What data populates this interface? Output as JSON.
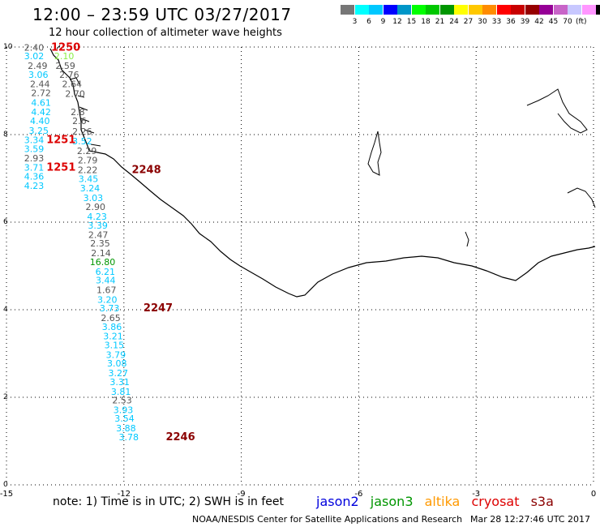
{
  "header": {
    "title": "12:00 – 23:59 UTC 03/27/2017",
    "subtitle": "12 hour collection of altimeter wave heights"
  },
  "colorbar": {
    "colors": [
      "#777777",
      "#00ffff",
      "#00c8ff",
      "#0000ff",
      "#0096c8",
      "#00ff00",
      "#00c800",
      "#009600",
      "#ffff00",
      "#ffc800",
      "#ff8c00",
      "#ff0000",
      "#c80000",
      "#960000",
      "#960096",
      "#c864c8",
      "#c8c8ff",
      "#ff96ff",
      "#000000"
    ],
    "labels": [
      "3",
      "6",
      "9",
      "12",
      "15",
      "18",
      "21",
      "24",
      "27",
      "30",
      "33",
      "36",
      "39",
      "42",
      "45",
      "70"
    ],
    "unit": "(ft)"
  },
  "map": {
    "x_ticks": [
      "-15",
      "-12",
      "-9",
      "-6",
      "-3",
      "0"
    ],
    "y_ticks": [
      "10",
      "8",
      "6",
      "4",
      "2",
      "0"
    ]
  },
  "observations": [
    {
      "v": "2.40",
      "c": "#555555",
      "lon": -14.55,
      "lat": 9.92
    },
    {
      "v": "3.02",
      "c": "#00c8ff",
      "lon": -14.55,
      "lat": 9.72
    },
    {
      "v": "2.10",
      "c": "#88ee44",
      "lon": -13.78,
      "lat": 9.72
    },
    {
      "v": "2.59",
      "c": "#555555",
      "lon": -13.75,
      "lat": 9.5
    },
    {
      "v": "2.49",
      "c": "#555555",
      "lon": -14.46,
      "lat": 9.5
    },
    {
      "v": "3.06",
      "c": "#00c8ff",
      "lon": -14.44,
      "lat": 9.3
    },
    {
      "v": "2.76",
      "c": "#555555",
      "lon": -13.65,
      "lat": 9.3
    },
    {
      "v": "2.44",
      "c": "#555555",
      "lon": -14.4,
      "lat": 9.08
    },
    {
      "v": "2.64",
      "c": "#555555",
      "lon": -13.58,
      "lat": 9.08
    },
    {
      "v": "2.72",
      "c": "#555555",
      "lon": -14.37,
      "lat": 8.88
    },
    {
      "v": "2.70",
      "c": "#555555",
      "lon": -13.5,
      "lat": 8.86
    },
    {
      "v": "4.61",
      "c": "#00c8ff",
      "lon": -14.37,
      "lat": 8.66
    },
    {
      "v": "4.42",
      "c": "#00c8ff",
      "lon": -14.37,
      "lat": 8.44
    },
    {
      "v": "2.8",
      "c": "#555555",
      "lon": -13.36,
      "lat": 8.44
    },
    {
      "v": "4.40",
      "c": "#00c8ff",
      "lon": -14.4,
      "lat": 8.24
    },
    {
      "v": "2.6",
      "c": "#555555",
      "lon": -13.32,
      "lat": 8.24
    },
    {
      "v": "3.25",
      "c": "#00c8ff",
      "lon": -14.43,
      "lat": 8.02
    },
    {
      "v": "2.26",
      "c": "#555555",
      "lon": -13.32,
      "lat": 8.0
    },
    {
      "v": "3.34",
      "c": "#00c8ff",
      "lon": -14.55,
      "lat": 7.81
    },
    {
      "v": "3.52",
      "c": "#00c8ff",
      "lon": -13.32,
      "lat": 7.78
    },
    {
      "v": "3.59",
      "c": "#00c8ff",
      "lon": -14.55,
      "lat": 7.6
    },
    {
      "v": "2.29",
      "c": "#555555",
      "lon": -13.2,
      "lat": 7.56
    },
    {
      "v": "2.93",
      "c": "#555555",
      "lon": -14.55,
      "lat": 7.39
    },
    {
      "v": "2.79",
      "c": "#555555",
      "lon": -13.18,
      "lat": 7.34
    },
    {
      "v": "3.71",
      "c": "#00c8ff",
      "lon": -14.55,
      "lat": 7.18
    },
    {
      "v": "2.22",
      "c": "#555555",
      "lon": -13.18,
      "lat": 7.12
    },
    {
      "v": "4.36",
      "c": "#00c8ff",
      "lon": -14.55,
      "lat": 6.97
    },
    {
      "v": "3.45",
      "c": "#00c8ff",
      "lon": -13.16,
      "lat": 6.92
    },
    {
      "v": "4.23",
      "c": "#00c8ff",
      "lon": -14.55,
      "lat": 6.76
    },
    {
      "v": "3.24",
      "c": "#00c8ff",
      "lon": -13.12,
      "lat": 6.7
    },
    {
      "v": "3.03",
      "c": "#00c8ff",
      "lon": -13.04,
      "lat": 6.48
    },
    {
      "v": "2.90",
      "c": "#555555",
      "lon": -12.98,
      "lat": 6.28
    },
    {
      "v": "4.23",
      "c": "#00c8ff",
      "lon": -12.94,
      "lat": 6.06
    },
    {
      "v": "3.39",
      "c": "#00c8ff",
      "lon": -12.92,
      "lat": 5.85
    },
    {
      "v": "2.47",
      "c": "#555555",
      "lon": -12.91,
      "lat": 5.64
    },
    {
      "v": "2.35",
      "c": "#555555",
      "lon": -12.86,
      "lat": 5.44
    },
    {
      "v": "2.14",
      "c": "#555555",
      "lon": -12.84,
      "lat": 5.22
    },
    {
      "v": "16.80",
      "c": "#009600",
      "lon": -12.87,
      "lat": 5.02
    },
    {
      "v": "6.21",
      "c": "#00c8ff",
      "lon": -12.73,
      "lat": 4.8
    },
    {
      "v": "3.44",
      "c": "#00c8ff",
      "lon": -12.72,
      "lat": 4.6
    },
    {
      "v": "1.67",
      "c": "#555555",
      "lon": -12.7,
      "lat": 4.38
    },
    {
      "v": "3.20",
      "c": "#00c8ff",
      "lon": -12.68,
      "lat": 4.16
    },
    {
      "v": "3.73",
      "c": "#00c8ff",
      "lon": -12.62,
      "lat": 3.96
    },
    {
      "v": "2.65",
      "c": "#555555",
      "lon": -12.59,
      "lat": 3.74
    },
    {
      "v": "3.86",
      "c": "#00c8ff",
      "lon": -12.56,
      "lat": 3.54
    },
    {
      "v": "3.21",
      "c": "#00c8ff",
      "lon": -12.53,
      "lat": 3.32
    },
    {
      "v": "3.15",
      "c": "#00c8ff",
      "lon": -12.5,
      "lat": 3.12
    },
    {
      "v": "3.79",
      "c": "#00c8ff",
      "lon": -12.46,
      "lat": 2.9
    },
    {
      "v": "3.08",
      "c": "#00c8ff",
      "lon": -12.43,
      "lat": 2.7
    },
    {
      "v": "3.27",
      "c": "#00c8ff",
      "lon": -12.4,
      "lat": 2.48
    },
    {
      "v": "3.31",
      "c": "#00c8ff",
      "lon": -12.36,
      "lat": 2.28
    },
    {
      "v": "3.81",
      "c": "#00c8ff",
      "lon": -12.33,
      "lat": 2.06
    },
    {
      "v": "2.53",
      "c": "#555555",
      "lon": -12.3,
      "lat": 1.86
    },
    {
      "v": "3.93",
      "c": "#00c8ff",
      "lon": -12.27,
      "lat": 1.64
    },
    {
      "v": "3.54",
      "c": "#00c8ff",
      "lon": -12.24,
      "lat": 1.44
    },
    {
      "v": "3.88",
      "c": "#00c8ff",
      "lon": -12.2,
      "lat": 1.22
    },
    {
      "v": "3.78",
      "c": "#00c8ff",
      "lon": -12.13,
      "lat": 1.02
    }
  ],
  "times": [
    {
      "t": "1250",
      "c": "#dd0000",
      "lon": -13.86,
      "lat": 9.92
    },
    {
      "t": "1251",
      "c": "#dd0000",
      "lon": -13.98,
      "lat": 7.81
    },
    {
      "t": "1251",
      "c": "#dd0000",
      "lon": -13.98,
      "lat": 7.18
    },
    {
      "t": "2248",
      "c": "#8b0000",
      "lon": -11.8,
      "lat": 7.12
    },
    {
      "t": "2247",
      "c": "#8b0000",
      "lon": -11.5,
      "lat": 3.96
    },
    {
      "t": "2246",
      "c": "#8b0000",
      "lon": -10.93,
      "lat": 1.02
    }
  ],
  "footer": {
    "note": "note:  1) Time is in UTC;  2) SWH is in feet",
    "legend": [
      {
        "name": "jason2",
        "color": "#0000dd"
      },
      {
        "name": "jason3",
        "color": "#009600"
      },
      {
        "name": "altika",
        "color": "#ff9900"
      },
      {
        "name": "cryosat",
        "color": "#dd0000"
      },
      {
        "name": "s3a",
        "color": "#8b0000"
      }
    ],
    "credit": "NOAA/NESDIS Center for Satellite Applications and Research",
    "stamp": "Mar 28 12:27:46 UTC 2017"
  }
}
